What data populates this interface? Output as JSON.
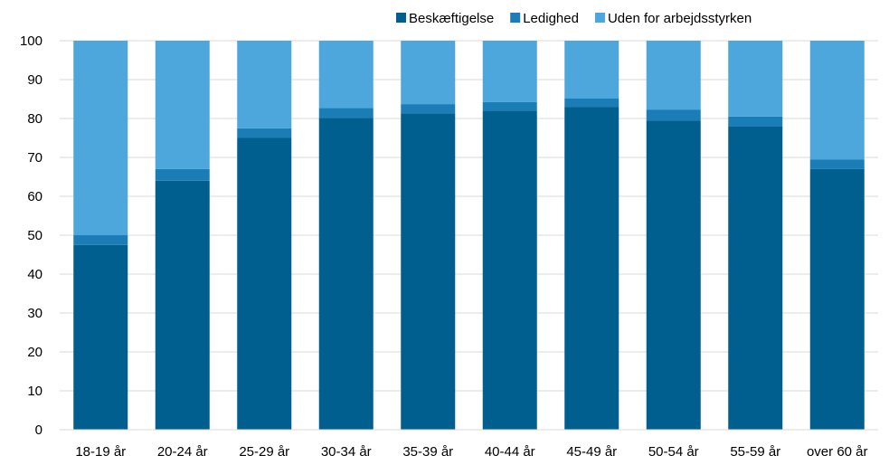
{
  "chart_data": {
    "type": "bar",
    "stacked": true,
    "categories": [
      "18-19 år",
      "20-24 år",
      "25-29 år",
      "30-34 år",
      "35-39 år",
      "40-44 år",
      "45-49 år",
      "50-54 år",
      "55-59 år",
      "over 60 år"
    ],
    "series": [
      {
        "name": "Beskæftigelse",
        "color": "#005f8f",
        "values": [
          47.5,
          64.0,
          75.0,
          80.2,
          81.3,
          82.0,
          83.0,
          79.5,
          78.0,
          67.0
        ]
      },
      {
        "name": "Ledighed",
        "color": "#1a7db5",
        "values": [
          2.5,
          3.0,
          2.5,
          2.5,
          2.4,
          2.2,
          2.2,
          2.8,
          2.5,
          2.5
        ]
      },
      {
        "name": "Uden for arbejdsstyrken",
        "color": "#4da6dc",
        "values": [
          50.0,
          33.0,
          22.5,
          17.3,
          16.3,
          15.8,
          14.8,
          17.7,
          19.5,
          30.5
        ]
      }
    ],
    "yticks": [
      0,
      10,
      20,
      30,
      40,
      50,
      60,
      70,
      80,
      90,
      100
    ],
    "ylim": [
      0,
      100
    ],
    "grid": true,
    "legend_position": "top-right"
  }
}
